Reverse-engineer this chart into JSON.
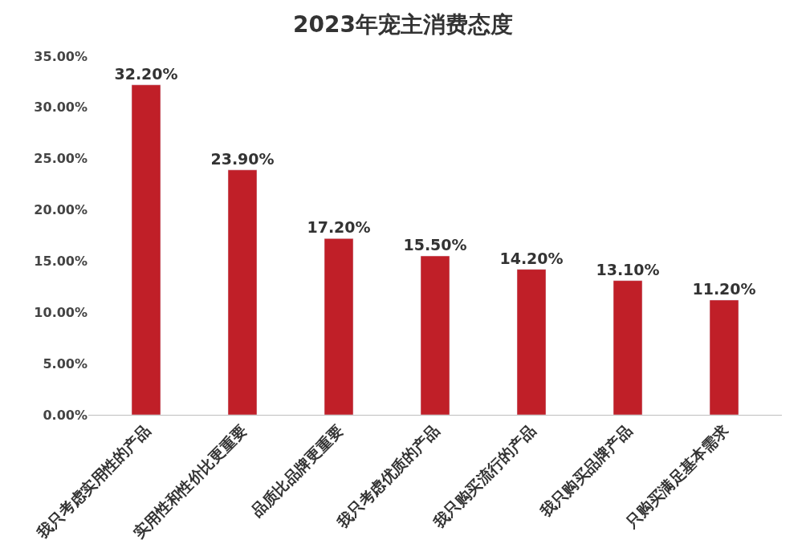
{
  "chart_data": {
    "type": "bar",
    "title": "2023年宠主消费态度",
    "categories": [
      "我只考虑实用性的产品",
      "实用性和性价比更重要",
      "品质比品牌更重要",
      "我只考虑优质的产品",
      "我只购买流行的产品",
      "我只购买品牌产品",
      "只购买满足基本需求"
    ],
    "values": [
      32.2,
      23.9,
      17.2,
      15.5,
      14.2,
      13.1,
      11.2
    ],
    "value_labels": [
      "32.20%",
      "23.90%",
      "17.20%",
      "15.50%",
      "14.20%",
      "13.10%",
      "11.20%"
    ],
    "color": "#c01f28",
    "ylim": [
      0,
      35
    ],
    "yticks": [
      {
        "value": 0,
        "label": "0.00%"
      },
      {
        "value": 5,
        "label": "5.00%"
      },
      {
        "value": 10,
        "label": "10.00%"
      },
      {
        "value": 15,
        "label": "15.00%"
      },
      {
        "value": 20,
        "label": "20.00%"
      },
      {
        "value": 25,
        "label": "25.00%"
      },
      {
        "value": 30,
        "label": "30.00%"
      },
      {
        "value": 35,
        "label": "35.00%"
      }
    ],
    "legend": false
  }
}
